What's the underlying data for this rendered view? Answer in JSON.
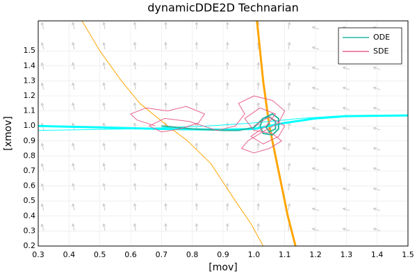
{
  "chart_data": {
    "type": "line",
    "title": "dynamicDDE2D Technarian",
    "x_label": "[mov]",
    "y_label": "[xmov]",
    "xlim": [
      0.3,
      1.5
    ],
    "ylim": [
      0.2,
      1.7
    ],
    "xticks": [
      0.3,
      0.4,
      0.5,
      0.6,
      0.7,
      0.8,
      0.9,
      {
        "value": 1,
        "label": "1.0"
      },
      1.1,
      1.2,
      1.3,
      1.4,
      1.5
    ],
    "yticks": [
      0.2,
      0.3,
      0.4,
      0.5,
      0.6,
      0.7,
      0.8,
      0.9,
      {
        "value": 1,
        "label": "1.0"
      },
      1.1,
      1.2,
      1.3,
      1.4,
      1.5
    ],
    "grid": true,
    "legend": "top-right",
    "series": [
      {
        "color": "#ffa500",
        "line_width": 1,
        "x": [
          0.442,
          0.5,
          0.57,
          0.63,
          0.72,
          0.785,
          0.86,
          0.94,
          0.99,
          1.03
        ],
        "values": [
          1.7,
          1.5,
          1.3,
          1.15,
          1.0,
          0.9,
          0.75,
          0.5,
          0.35,
          0.2
        ]
      },
      {
        "color": "#ffa500",
        "line_width": 3,
        "x": [
          1.01,
          1.03,
          1.05,
          1.07,
          1.09,
          1.11,
          1.135
        ],
        "values": [
          1.7,
          1.3,
          1.0,
          0.8,
          0.6,
          0.4,
          0.2
        ]
      },
      {
        "color": "#00ffff",
        "line_width": 3,
        "x": [
          0.3,
          0.5,
          0.7,
          0.9,
          1.0,
          1.1,
          1.2,
          1.3,
          1.5
        ],
        "values": [
          1.0,
          0.99,
          0.98,
          0.975,
          0.98,
          1.02,
          1.05,
          1.065,
          1.07
        ]
      },
      {
        "color": "#00ffff",
        "line_width": 1,
        "x": [
          0.3,
          0.6,
          0.85,
          1.0,
          1.15,
          1.3
        ],
        "values": [
          0.97,
          0.98,
          1.0,
          1.02,
          1.05,
          1.07
        ]
      },
      {
        "name": "ODE",
        "color": "#23b5a0",
        "line_width": 2,
        "x": [
          0.7,
          0.8,
          0.9,
          0.95,
          1.0,
          1.03,
          1.06,
          1.08,
          1.08,
          1.06,
          1.03,
          1.02,
          1.03,
          1.05,
          1.07,
          1.07,
          1.05,
          1.04,
          1.05
        ],
        "values": [
          1.0,
          0.98,
          0.97,
          0.97,
          0.99,
          1.05,
          1.08,
          1.05,
          0.98,
          0.94,
          0.95,
          1.0,
          1.05,
          1.06,
          1.03,
          0.98,
          0.96,
          0.99,
          1.02
        ]
      },
      {
        "name": "SDE",
        "color": "#e8618c",
        "line_width": 1,
        "x": [
          0.68,
          0.62,
          0.6,
          0.65,
          0.72,
          0.78,
          0.84,
          0.82,
          0.76,
          0.7,
          0.66,
          0.71,
          0.79,
          0.88,
          0.94,
          0.97,
          0.95,
          1.0,
          1.06,
          1.1,
          1.08,
          1.02,
          0.98,
          0.96,
          1.0,
          1.05,
          1.09,
          1.06,
          1.0,
          0.97,
          1.02,
          1.07,
          1.04,
          0.99,
          1.03,
          1.08,
          1.1,
          1.05,
          1.0
        ],
        "values": [
          1.0,
          1.04,
          1.08,
          1.12,
          1.1,
          1.13,
          1.08,
          1.02,
          0.98,
          0.96,
          1.0,
          1.05,
          1.03,
          0.97,
          1.0,
          1.08,
          1.15,
          1.2,
          1.17,
          1.1,
          1.02,
          0.95,
          0.9,
          0.85,
          0.82,
          0.85,
          0.9,
          0.95,
          0.97,
          1.05,
          1.12,
          1.08,
          1.0,
          0.93,
          0.88,
          0.93,
          1.0,
          1.06,
          1.0
        ]
      }
    ]
  }
}
